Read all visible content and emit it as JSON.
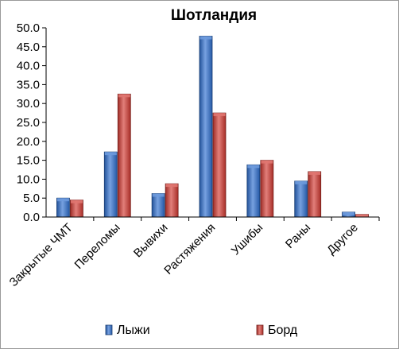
{
  "chart_data": {
    "type": "bar",
    "title": "Шотландия",
    "categories": [
      "Закрытые ЧМТ",
      "Переломы",
      "Вывихи",
      "Растяжения",
      "Ушибы",
      "Раны",
      "Другое"
    ],
    "series": [
      {
        "name": "Лыжи",
        "color": "#2e6fcf",
        "values": [
          5.0,
          17.2,
          6.2,
          47.8,
          13.8,
          9.5,
          1.3
        ]
      },
      {
        "name": "Борд",
        "color": "#d23a32",
        "values": [
          4.5,
          32.5,
          8.8,
          27.5,
          15.0,
          12.0,
          0.7
        ]
      }
    ],
    "yticks": [
      "0.0",
      "5.0",
      "10.0",
      "15.0",
      "20.0",
      "25.0",
      "30.0",
      "35.0",
      "40.0",
      "45.0",
      "50.0"
    ],
    "ylim": [
      0,
      50
    ],
    "grid": false,
    "legend_position": "bottom"
  }
}
